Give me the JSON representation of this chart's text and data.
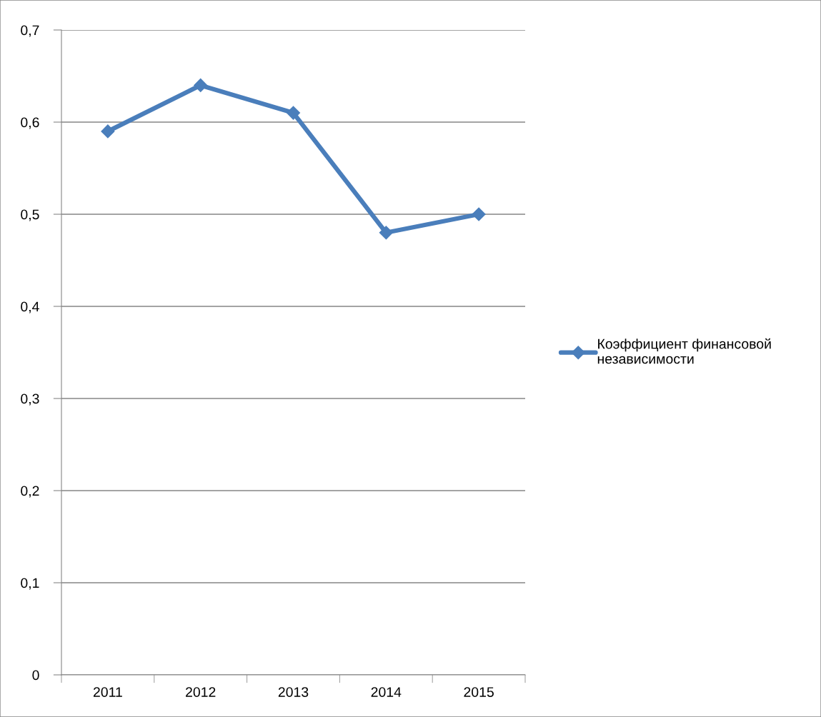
{
  "chart_data": {
    "type": "line",
    "categories": [
      "2011",
      "2012",
      "2013",
      "2014",
      "2015"
    ],
    "series": [
      {
        "name": "Коэффициент финансовой независимости",
        "color": "#4a7ebb",
        "values": [
          0.59,
          0.64,
          0.61,
          0.48,
          0.5
        ]
      }
    ],
    "ylim": [
      0,
      0.7
    ],
    "yticks": [
      {
        "value": 0,
        "label": "0"
      },
      {
        "value": 0.1,
        "label": "0,1"
      },
      {
        "value": 0.2,
        "label": "0,2"
      },
      {
        "value": 0.3,
        "label": "0,3"
      },
      {
        "value": 0.4,
        "label": "0,4"
      },
      {
        "value": 0.5,
        "label": "0,5"
      },
      {
        "value": 0.6,
        "label": "0,6"
      },
      {
        "value": 0.7,
        "label": "0,7"
      }
    ],
    "grid": "y",
    "legend": "right",
    "marker": "diamond",
    "line_style": "solid"
  }
}
